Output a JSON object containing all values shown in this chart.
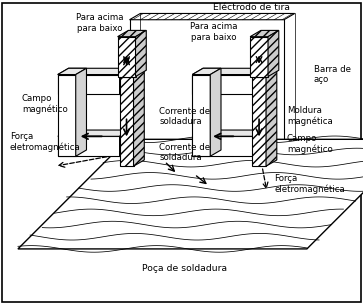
{
  "labels": {
    "top_left_arrow": "Para acima\npara baixo",
    "top_center": "Eléctrodo de tira",
    "top_center_arrow": "Para acima\npara baixo",
    "right_top": "Barra de\naço",
    "left_magnetic": "Campo\nmagnético",
    "left_force": "Força\neletromagnética",
    "center_current1": "Corrente de\nsoldadura",
    "center_current2": "Corrente de\nsoldadura",
    "right_magnetic_frame": "Moldura\nmagnética",
    "right_magnetic_field": "Campo\nmagnético",
    "right_force": "Força\neletromagnética",
    "bottom": "Poça de soldadura"
  },
  "bg_color": "#ffffff"
}
